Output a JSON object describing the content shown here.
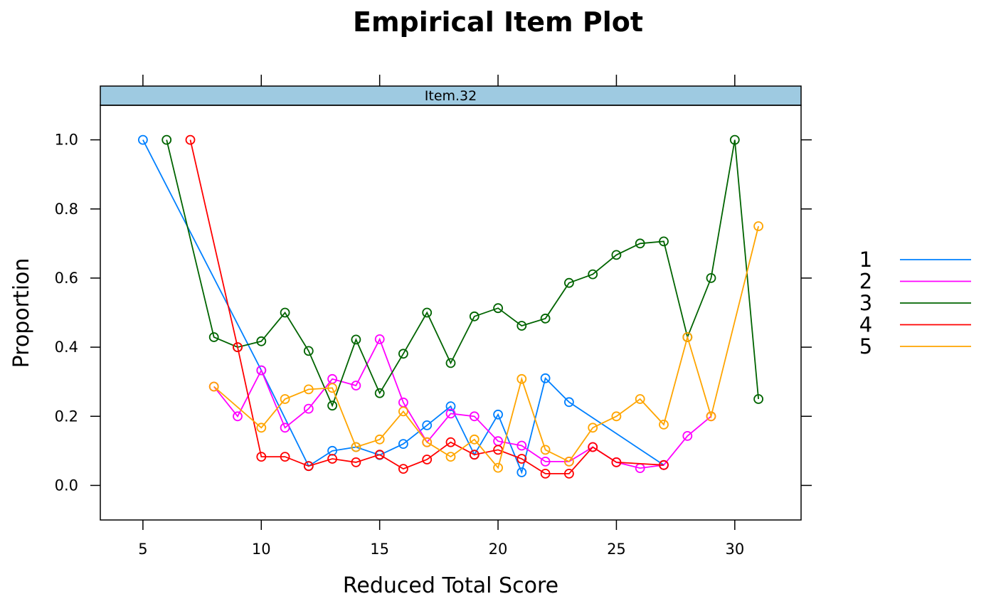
{
  "chart_data": {
    "type": "line",
    "title": "Empirical Item Plot",
    "panel": "Item.32",
    "xlabel": "Reduced Total Score",
    "ylabel": "Proportion",
    "xlim": [
      3.2,
      32.8
    ],
    "ylim": [
      -0.1,
      1.1
    ],
    "xticks": [
      5,
      10,
      15,
      20,
      25,
      30
    ],
    "yticks": [
      0.0,
      0.2,
      0.4,
      0.6,
      0.8,
      1.0
    ],
    "ytick_labels": [
      "0.0",
      "0.2",
      "0.4",
      "0.6",
      "0.8",
      "1.0"
    ],
    "legend_position": "right",
    "series": [
      {
        "name": "1",
        "color": "#0080ff",
        "points": [
          [
            5,
            1.0
          ],
          [
            10,
            0.333
          ],
          [
            12,
            0.056
          ],
          [
            13,
            0.1
          ],
          [
            14,
            0.111
          ],
          [
            15,
            0.088
          ],
          [
            16,
            0.12
          ],
          [
            17,
            0.174
          ],
          [
            18,
            0.229
          ],
          [
            19,
            0.089
          ],
          [
            20,
            0.205
          ],
          [
            21,
            0.038
          ],
          [
            22,
            0.31
          ],
          [
            23,
            0.241
          ],
          [
            27,
            0.059
          ]
        ]
      },
      {
        "name": "2",
        "color": "#ff00ff",
        "points": [
          [
            8,
            0.286
          ],
          [
            9,
            0.2
          ],
          [
            10,
            0.333
          ],
          [
            11,
            0.167
          ],
          [
            12,
            0.222
          ],
          [
            13,
            0.308
          ],
          [
            14,
            0.289
          ],
          [
            15,
            0.423
          ],
          [
            16,
            0.24
          ],
          [
            17,
            0.125
          ],
          [
            18,
            0.208
          ],
          [
            19,
            0.2
          ],
          [
            20,
            0.128
          ],
          [
            21,
            0.115
          ],
          [
            22,
            0.069
          ],
          [
            23,
            0.069
          ],
          [
            24,
            0.111
          ],
          [
            25,
            0.067
          ],
          [
            26,
            0.05
          ],
          [
            27,
            0.059
          ],
          [
            28,
            0.143
          ],
          [
            29,
            0.2
          ]
        ]
      },
      {
        "name": "3",
        "color": "#006400",
        "points": [
          [
            6,
            1.0
          ],
          [
            8,
            0.429
          ],
          [
            9,
            0.4
          ],
          [
            10,
            0.417
          ],
          [
            11,
            0.5
          ],
          [
            12,
            0.389
          ],
          [
            13,
            0.231
          ],
          [
            14,
            0.422
          ],
          [
            15,
            0.267
          ],
          [
            16,
            0.381
          ],
          [
            17,
            0.5
          ],
          [
            18,
            0.354
          ],
          [
            19,
            0.489
          ],
          [
            20,
            0.513
          ],
          [
            21,
            0.462
          ],
          [
            22,
            0.483
          ],
          [
            23,
            0.586
          ],
          [
            24,
            0.611
          ],
          [
            25,
            0.667
          ],
          [
            26,
            0.7
          ],
          [
            27,
            0.706
          ],
          [
            28,
            0.429
          ],
          [
            29,
            0.6
          ],
          [
            30,
            1.0
          ],
          [
            31,
            0.25
          ]
        ]
      },
      {
        "name": "4",
        "color": "#ff0000",
        "points": [
          [
            7,
            1.0
          ],
          [
            9,
            0.4
          ],
          [
            10,
            0.083
          ],
          [
            11,
            0.083
          ],
          [
            12,
            0.056
          ],
          [
            13,
            0.077
          ],
          [
            14,
            0.067
          ],
          [
            15,
            0.089
          ],
          [
            16,
            0.048
          ],
          [
            17,
            0.075
          ],
          [
            18,
            0.125
          ],
          [
            19,
            0.089
          ],
          [
            20,
            0.103
          ],
          [
            21,
            0.077
          ],
          [
            22,
            0.034
          ],
          [
            23,
            0.034
          ],
          [
            24,
            0.111
          ],
          [
            25,
            0.067
          ],
          [
            27,
            0.059
          ]
        ]
      },
      {
        "name": "5",
        "color": "#ffa500",
        "points": [
          [
            8,
            0.286
          ],
          [
            10,
            0.167
          ],
          [
            11,
            0.25
          ],
          [
            12,
            0.278
          ],
          [
            13,
            0.282
          ],
          [
            14,
            0.111
          ],
          [
            15,
            0.133
          ],
          [
            16,
            0.214
          ],
          [
            17,
            0.125
          ],
          [
            18,
            0.083
          ],
          [
            19,
            0.133
          ],
          [
            20,
            0.051
          ],
          [
            21,
            0.308
          ],
          [
            22,
            0.103
          ],
          [
            23,
            0.069
          ],
          [
            24,
            0.167
          ],
          [
            25,
            0.2
          ],
          [
            26,
            0.25
          ],
          [
            27,
            0.176
          ],
          [
            28,
            0.429
          ],
          [
            29,
            0.2
          ],
          [
            31,
            0.75
          ]
        ]
      }
    ]
  }
}
